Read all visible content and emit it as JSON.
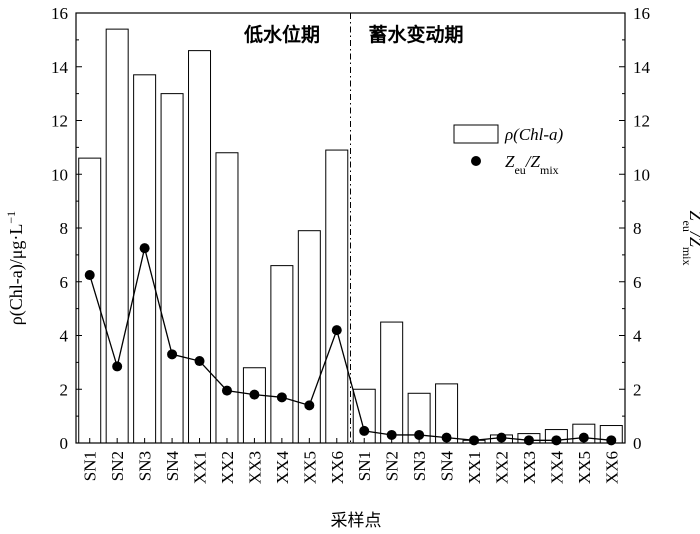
{
  "chart_data": {
    "type": "bar",
    "categories": [
      "SN1",
      "SN2",
      "SN3",
      "SN4",
      "XX1",
      "XX2",
      "XX3",
      "XX4",
      "XX5",
      "XX6",
      "SN1",
      "SN2",
      "SN3",
      "SN4",
      "XX1",
      "XX2",
      "XX3",
      "XX4",
      "XX5",
      "XX6"
    ],
    "series": [
      {
        "name": "ρ(Chl-a)",
        "kind": "bar",
        "axis": "left",
        "values": [
          10.6,
          15.4,
          13.7,
          13.0,
          14.6,
          10.8,
          2.8,
          6.6,
          7.9,
          10.9,
          2.0,
          4.5,
          1.85,
          2.2,
          0.1,
          0.3,
          0.35,
          0.5,
          0.7,
          0.65
        ]
      },
      {
        "name": "Zeu/Zmix",
        "kind": "line-marker",
        "axis": "right",
        "values": [
          6.25,
          2.85,
          7.25,
          3.3,
          3.05,
          1.95,
          1.8,
          1.7,
          1.4,
          4.2,
          0.45,
          0.3,
          0.3,
          0.2,
          0.1,
          0.2,
          0.1,
          0.1,
          0.2,
          0.1
        ]
      }
    ],
    "ylim": [
      0,
      16
    ],
    "y2lim": [
      0,
      16
    ],
    "yticks": [
      "0",
      "2",
      "4",
      "6",
      "8",
      "10",
      "12",
      "14",
      "16"
    ],
    "y2ticks": [
      "0",
      "2",
      "4",
      "6",
      "8",
      "10",
      "12",
      "14",
      "16"
    ],
    "xlabel": "采样点",
    "ylabel": {
      "main": "ρ(Chl-a)/μg·L",
      "superscript": "−1"
    },
    "y2label": {
      "main": "Z",
      "sub1": "eu",
      "mid": "/Z",
      "sub2": "mix"
    },
    "period_labels": [
      "低水位期",
      "蓄水变动期"
    ],
    "period_divider_after_index": 9,
    "legend": {
      "position": "right-center",
      "bar_label": {
        "main": "ρ(Chl-a)"
      },
      "line_label": {
        "main": "Z",
        "sub1": "eu",
        "mid": "/Z",
        "sub2": "mix"
      }
    }
  }
}
